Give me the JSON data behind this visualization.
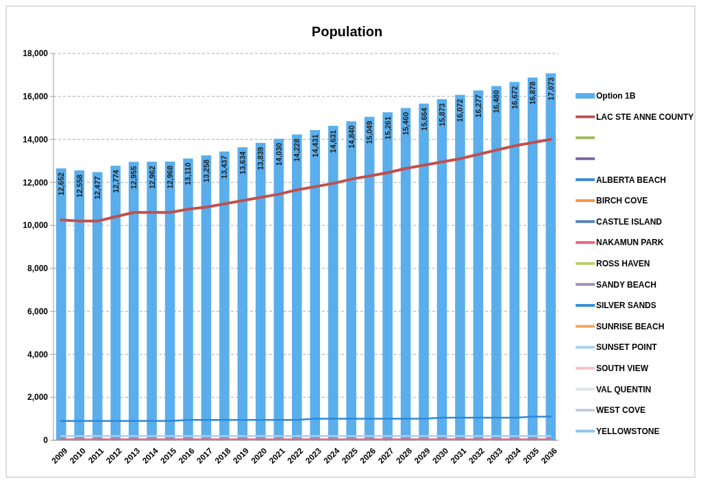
{
  "chart_data": {
    "type": "bar",
    "title": "Population",
    "categories": [
      "2009",
      "2010",
      "2011",
      "2012",
      "2013",
      "2014",
      "2015",
      "2016",
      "2017",
      "2018",
      "2019",
      "2020",
      "2021",
      "2022",
      "2023",
      "2024",
      "2025",
      "2026",
      "2027",
      "2028",
      "2029",
      "2030",
      "2031",
      "2032",
      "2033",
      "2034",
      "2035",
      "2036"
    ],
    "series": [
      {
        "name": "Option 1B",
        "color": "#5aaeec",
        "values": [
          12652,
          12558,
          12477,
          12774,
          12955,
          12962,
          12968,
          13110,
          13258,
          13437,
          13634,
          13839,
          14030,
          14228,
          14431,
          14631,
          14840,
          15049,
          15261,
          15460,
          15664,
          15873,
          16072,
          16277,
          16480,
          16672,
          16878,
          17073
        ],
        "value_labels": [
          "12,652",
          "12,558",
          "12,477",
          "12,774",
          "12,955",
          "12,962",
          "12,968",
          "13,110",
          "13,258",
          "13,437",
          "13,634",
          "13,839",
          "14,030",
          "14,228",
          "14,431",
          "14,631",
          "14,840",
          "15,049",
          "15,261",
          "15,460",
          "15,664",
          "15,873",
          "16,072",
          "16,277",
          "16,480",
          "16,672",
          "16,878",
          "17,073"
        ]
      },
      {
        "name": "LAC STE  ANNE COUNTY",
        "type": "line",
        "color": "#c0504d",
        "values": [
          10250,
          10200,
          10200,
          10400,
          10600,
          10600,
          10600,
          10750,
          10850,
          11000,
          11150,
          11300,
          11450,
          11650,
          11800,
          11950,
          12150,
          12300,
          12450,
          12650,
          12800,
          12950,
          13100,
          13300,
          13500,
          13700,
          13850,
          14000
        ]
      },
      {
        "type": "line",
        "color": "#9bbb59",
        "values": [
          null,
          null,
          null,
          null,
          null,
          null,
          null,
          null,
          null,
          null,
          null,
          null,
          null,
          null,
          null,
          null,
          null,
          null,
          null,
          null,
          null,
          null,
          null,
          null,
          null,
          null,
          null,
          null
        ]
      },
      {
        "type": "line",
        "color": "#8064a2",
        "values": [
          null,
          null,
          null,
          null,
          null,
          null,
          null,
          null,
          null,
          null,
          null,
          null,
          null,
          null,
          null,
          null,
          null,
          null,
          null,
          null,
          null,
          null,
          null,
          null,
          null,
          null,
          null,
          null
        ]
      },
      {
        "name": "ALBERTA BEACH",
        "type": "line",
        "color": "#2e86d8",
        "values": [
          900,
          900,
          900,
          900,
          900,
          900,
          900,
          950,
          950,
          950,
          950,
          950,
          950,
          950,
          1000,
          1000,
          1000,
          1000,
          1000,
          1000,
          1000,
          1050,
          1050,
          1050,
          1050,
          1050,
          1100,
          1100
        ]
      },
      {
        "name": "BIRCH COVE",
        "type": "line",
        "color": "#f79646",
        "values": [
          null,
          null,
          null,
          null,
          null,
          null,
          null,
          null,
          null,
          null,
          null,
          null,
          null,
          null,
          null,
          null,
          null,
          null,
          null,
          null,
          null,
          null,
          null,
          null,
          null,
          null,
          null,
          null
        ]
      },
      {
        "name": "CASTLE ISLAND",
        "type": "line",
        "color": "#4f81bd",
        "values": [
          null,
          null,
          null,
          null,
          null,
          null,
          null,
          null,
          null,
          null,
          null,
          null,
          null,
          null,
          null,
          null,
          null,
          null,
          null,
          null,
          null,
          null,
          null,
          null,
          null,
          null,
          null,
          null
        ]
      },
      {
        "name": "NAKAMUN PARK",
        "type": "line",
        "color": "#e8667a",
        "values": [
          50,
          50,
          50,
          50,
          50,
          50,
          50,
          50,
          50,
          50,
          50,
          50,
          50,
          50,
          50,
          50,
          50,
          50,
          50,
          50,
          50,
          50,
          50,
          50,
          50,
          50,
          50,
          50
        ]
      },
      {
        "name": "ROSS HAVEN",
        "type": "line",
        "color": "#b5cf6b",
        "values": [
          null,
          null,
          null,
          null,
          null,
          null,
          null,
          null,
          null,
          null,
          null,
          null,
          null,
          null,
          null,
          null,
          null,
          null,
          null,
          null,
          null,
          null,
          null,
          null,
          null,
          null,
          null,
          null
        ]
      },
      {
        "name": "SANDY BEACH",
        "type": "line",
        "color": "#9a8fb5",
        "values": [
          null,
          null,
          null,
          null,
          null,
          null,
          null,
          null,
          null,
          null,
          null,
          null,
          null,
          null,
          null,
          null,
          null,
          null,
          null,
          null,
          null,
          null,
          null,
          null,
          null,
          null,
          null,
          null
        ]
      },
      {
        "name": "SILVER SANDS",
        "type": "line",
        "color": "#3a8ed8",
        "values": [
          null,
          null,
          null,
          null,
          null,
          null,
          null,
          null,
          null,
          null,
          null,
          null,
          null,
          null,
          null,
          null,
          null,
          null,
          null,
          null,
          null,
          null,
          null,
          null,
          null,
          null,
          null,
          null
        ]
      },
      {
        "name": "SUNRISE BEACH",
        "type": "line",
        "color": "#f4a460",
        "values": [
          null,
          null,
          null,
          null,
          null,
          null,
          null,
          null,
          null,
          null,
          null,
          null,
          null,
          null,
          null,
          null,
          null,
          null,
          null,
          null,
          null,
          null,
          null,
          null,
          null,
          null,
          null,
          null
        ]
      },
      {
        "name": "SUNSET POINT",
        "type": "line",
        "color": "#a8d0f0",
        "values": [
          200,
          200,
          200,
          200,
          200,
          200,
          200,
          200,
          200,
          200,
          200,
          200,
          200,
          200,
          200,
          200,
          200,
          200,
          200,
          200,
          200,
          200,
          200,
          200,
          200,
          200,
          200,
          200
        ]
      },
      {
        "name": "SOUTH VIEW",
        "type": "line",
        "color": "#f2c4c4",
        "values": [
          null,
          null,
          null,
          null,
          null,
          null,
          null,
          null,
          null,
          null,
          null,
          null,
          null,
          null,
          null,
          null,
          null,
          null,
          null,
          null,
          null,
          null,
          null,
          null,
          null,
          null,
          null,
          null
        ]
      },
      {
        "name": "VAL QUENTIN",
        "type": "line",
        "color": "#dde4ea",
        "values": [
          null,
          null,
          null,
          null,
          null,
          null,
          null,
          null,
          null,
          null,
          null,
          null,
          null,
          null,
          null,
          null,
          null,
          null,
          null,
          null,
          null,
          null,
          null,
          null,
          null,
          null,
          null,
          null
        ]
      },
      {
        "name": "WEST COVE",
        "type": "line",
        "color": "#c7c9e0",
        "values": [
          null,
          null,
          null,
          null,
          null,
          null,
          null,
          null,
          null,
          null,
          null,
          null,
          null,
          null,
          null,
          null,
          null,
          null,
          null,
          null,
          null,
          null,
          null,
          null,
          null,
          null,
          null,
          null
        ]
      },
      {
        "name": "YELLOWSTONE",
        "type": "line",
        "color": "#8cc4ee",
        "values": [
          null,
          null,
          null,
          null,
          null,
          null,
          null,
          null,
          null,
          null,
          null,
          null,
          null,
          null,
          null,
          null,
          null,
          null,
          null,
          null,
          null,
          null,
          null,
          null,
          null,
          null,
          null,
          null
        ]
      }
    ],
    "ylim": [
      0,
      18000
    ],
    "yticks": [
      {
        "value": 0,
        "label": "0"
      },
      {
        "value": 2000,
        "label": "2,000"
      },
      {
        "value": 4000,
        "label": "4,000"
      },
      {
        "value": 6000,
        "label": "6,000"
      },
      {
        "value": 8000,
        "label": "8,000"
      },
      {
        "value": 10000,
        "label": "10,000"
      },
      {
        "value": 12000,
        "label": "12,000"
      },
      {
        "value": 14000,
        "label": "14,000"
      },
      {
        "value": 16000,
        "label": "16,000"
      },
      {
        "value": 18000,
        "label": "18,000"
      }
    ],
    "grid": "y",
    "legend": "right"
  }
}
